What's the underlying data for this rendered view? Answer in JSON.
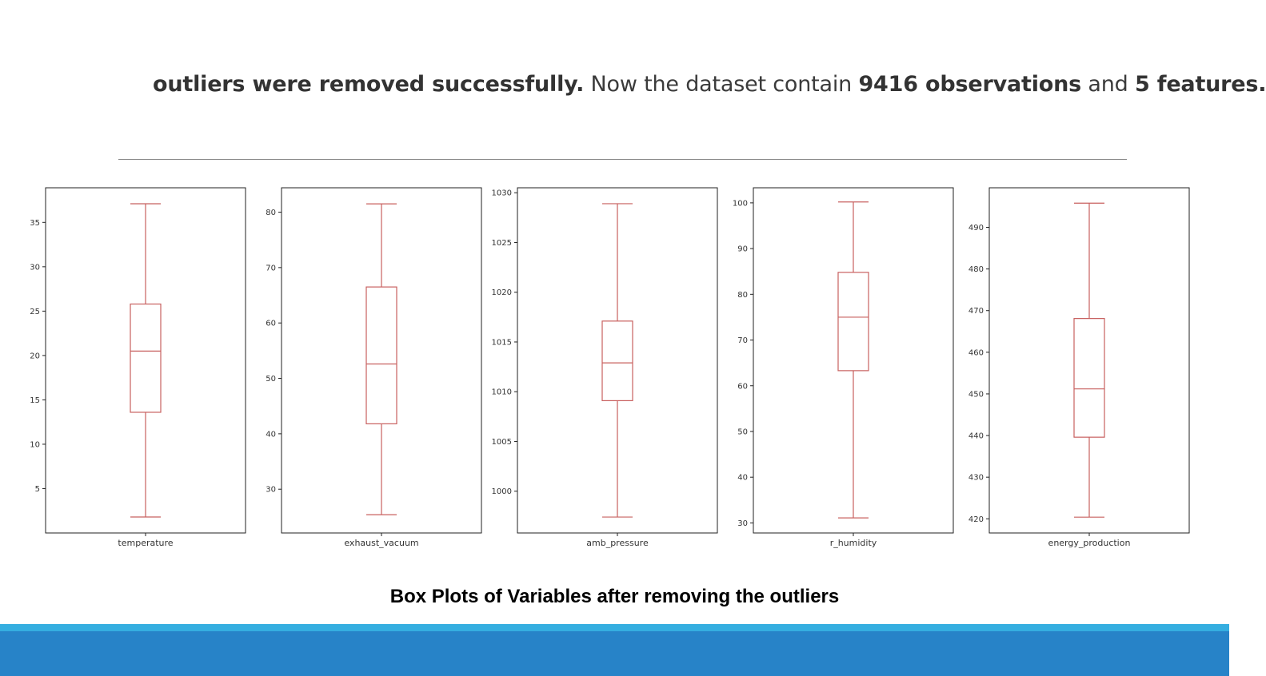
{
  "headline": {
    "part1_bold": "outliers were removed successfully.",
    "part2": " Now the dataset contain ",
    "part3_bold": "9416 observations",
    "part4": " and ",
    "part5_bold": "5 features."
  },
  "caption": "Box Plots of Variables after removing the outliers",
  "colors": {
    "box": "#c8605f",
    "axes": "#222222",
    "footer_light": "#35aee0",
    "footer_dark": "#2783c8"
  },
  "chart_data": [
    {
      "type": "box",
      "xlabel": "temperature",
      "ylim": [
        0.0,
        38.9
      ],
      "yticks": [
        5,
        10,
        15,
        20,
        25,
        30,
        35
      ],
      "box": {
        "whisker_low": 1.8,
        "q1": 13.6,
        "median": 20.5,
        "q3": 25.8,
        "whisker_high": 37.1
      }
    },
    {
      "type": "box",
      "xlabel": "exhaust_vacuum",
      "ylim": [
        22.1,
        84.4
      ],
      "yticks": [
        30,
        40,
        50,
        60,
        70,
        80
      ],
      "box": {
        "whisker_low": 25.4,
        "q1": 41.8,
        "median": 52.6,
        "q3": 66.5,
        "whisker_high": 81.5
      }
    },
    {
      "type": "box",
      "xlabel": "amb_pressure",
      "ylim": [
        995.8,
        1030.5
      ],
      "yticks": [
        1000,
        1005,
        1010,
        1015,
        1020,
        1025,
        1030
      ],
      "box": {
        "whisker_low": 997.4,
        "q1": 1009.1,
        "median": 1012.9,
        "q3": 1017.1,
        "whisker_high": 1028.9
      }
    },
    {
      "type": "box",
      "xlabel": "r_humidity",
      "ylim": [
        27.8,
        103.3
      ],
      "yticks": [
        30,
        40,
        50,
        60,
        70,
        80,
        90,
        100
      ],
      "box": {
        "whisker_low": 31.1,
        "q1": 63.3,
        "median": 75.0,
        "q3": 84.8,
        "whisker_high": 100.2
      }
    },
    {
      "type": "box",
      "xlabel": "energy_production",
      "ylim": [
        416.6,
        499.5
      ],
      "yticks": [
        420,
        430,
        440,
        450,
        460,
        470,
        480,
        490
      ],
      "box": {
        "whisker_low": 420.4,
        "q1": 439.6,
        "median": 451.2,
        "q3": 468.1,
        "whisker_high": 495.8
      }
    }
  ]
}
